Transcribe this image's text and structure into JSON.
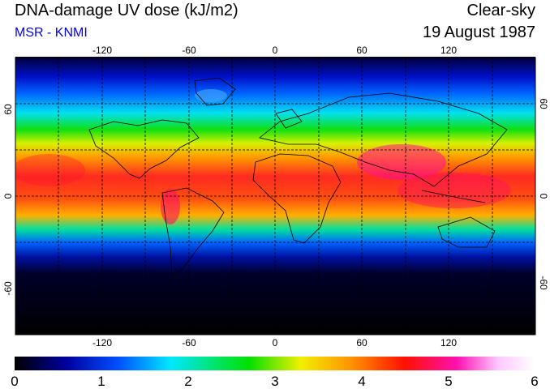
{
  "header": {
    "title": "DNA-damage UV dose (kJ/m2)",
    "source": "MSR - KNMI",
    "condition": "Clear-sky",
    "date": "19 August 1987"
  },
  "map": {
    "projection": "equirectangular",
    "lon_ticks": [
      {
        "value": -120,
        "label": "-120"
      },
      {
        "value": -60,
        "label": "-60"
      },
      {
        "value": 0,
        "label": "0"
      },
      {
        "value": 60,
        "label": "60"
      },
      {
        "value": 120,
        "label": "120"
      }
    ],
    "lat_ticks": [
      {
        "value": 60,
        "label": "60"
      },
      {
        "value": 0,
        "label": "0"
      },
      {
        "value": -60,
        "label": "-60"
      }
    ],
    "gridlines": "dashed, every 30 degrees",
    "lon_range": [
      -180,
      180
    ],
    "lat_range": [
      -90,
      90
    ]
  },
  "colorbar": {
    "labels": [
      "0",
      "1",
      "2",
      "3",
      "4",
      "5",
      "6"
    ],
    "min": 0,
    "max": 6,
    "colors": [
      "#000000",
      "#0000a0",
      "#0050ff",
      "#00e8ff",
      "#00e000",
      "#f0f000",
      "#ff9000",
      "#ff1000",
      "#ff10b0",
      "#ffc8ff",
      "#ffffff"
    ]
  }
}
